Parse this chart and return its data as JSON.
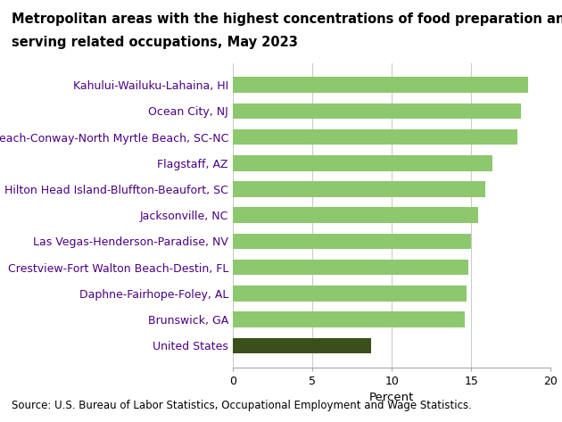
{
  "title_line1": "Metropolitan areas with the highest concentrations of food preparation and",
  "title_line2": "serving related occupations, May 2023",
  "categories": [
    "United States",
    "Brunswick, GA",
    "Daphne-Fairhope-Foley, AL",
    "Crestview-Fort Walton Beach-Destin, FL",
    "Las Vegas-Henderson-Paradise, NV",
    "Jacksonville, NC",
    "Hilton Head Island-Bluffton-Beaufort, SC",
    "Flagstaff, AZ",
    "Myrtle Beach-Conway-North Myrtle Beach, SC-NC",
    "Ocean City, NJ",
    "Kahului-Wailuku-Lahaina, HI"
  ],
  "values": [
    8.7,
    14.6,
    14.7,
    14.8,
    15.0,
    15.4,
    15.9,
    16.3,
    17.9,
    18.1,
    18.6
  ],
  "bar_colors": [
    "#3a4f1a",
    "#8dc86e",
    "#8dc86e",
    "#8dc86e",
    "#8dc86e",
    "#8dc86e",
    "#8dc86e",
    "#8dc86e",
    "#8dc86e",
    "#8dc86e",
    "#8dc86e"
  ],
  "xlabel": "Percent",
  "xlim": [
    0,
    20
  ],
  "xticks": [
    0,
    5,
    10,
    15,
    20
  ],
  "source": "Source: U.S. Bureau of Labor Statistics, Occupational Employment and Wage Statistics.",
  "label_color": "#4b0082",
  "title_fontsize": 10.5,
  "tick_fontsize": 9,
  "source_fontsize": 8.5,
  "bar_height": 0.6,
  "figsize": [
    6.3,
    4.73
  ],
  "dpi": 100
}
